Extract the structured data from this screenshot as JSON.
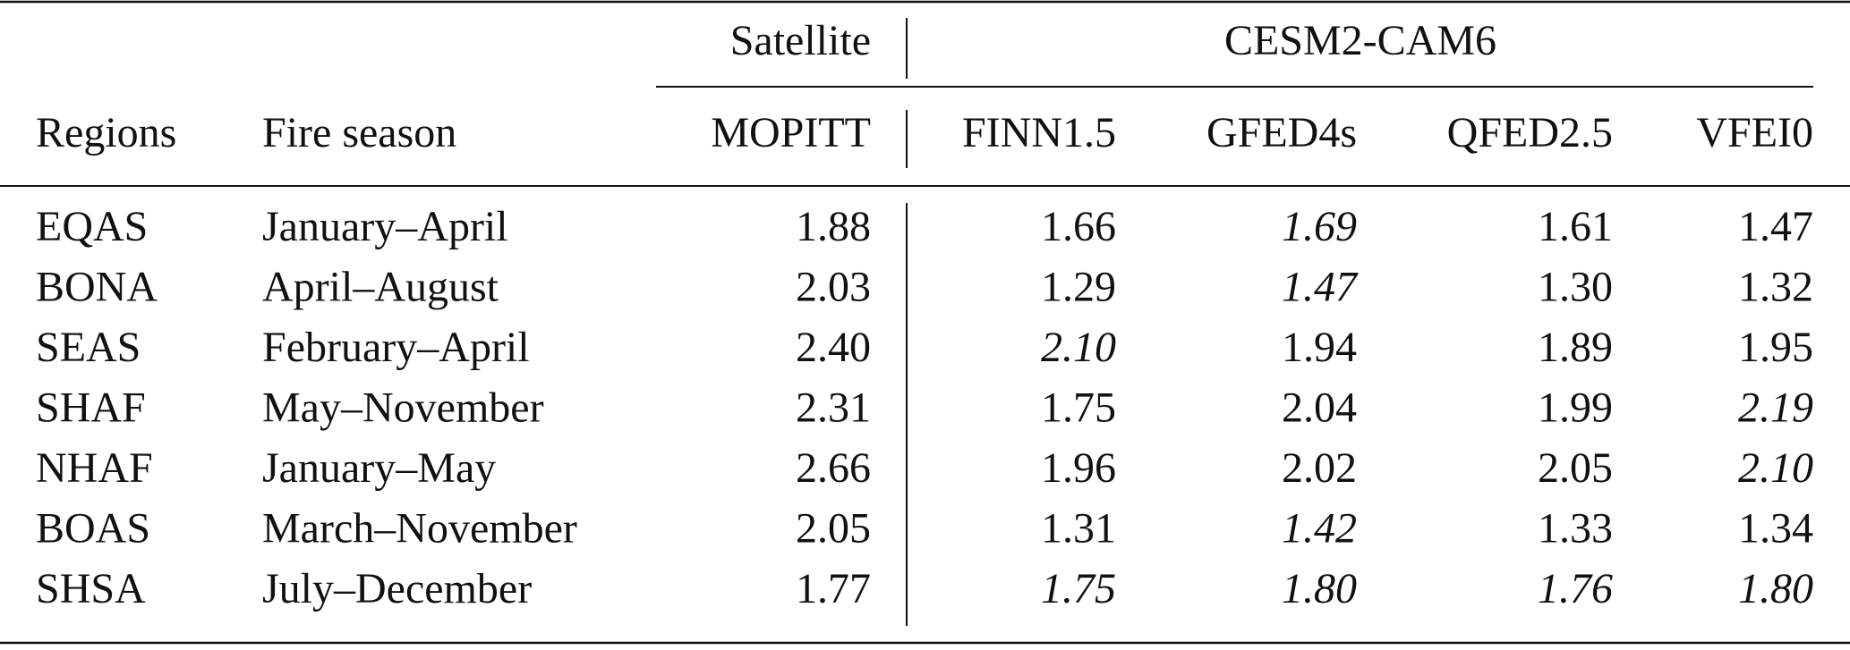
{
  "table": {
    "group_headers": [
      "Satellite",
      "CESM2-CAM6"
    ],
    "columns": [
      "Regions",
      "Fire season",
      "MOPITT",
      "FINN1.5",
      "GFED4s",
      "QFED2.5",
      "VFEI0"
    ],
    "rows": [
      [
        "EQAS",
        "January–April",
        "1.88",
        "1.66",
        "1.69",
        "1.61",
        "1.47"
      ],
      [
        "BONA",
        "April–August",
        "2.03",
        "1.29",
        "1.47",
        "1.30",
        "1.32"
      ],
      [
        "SEAS",
        "February–April",
        "2.40",
        "2.10",
        "1.94",
        "1.89",
        "1.95"
      ],
      [
        "SHAF",
        "May–November",
        "2.31",
        "1.75",
        "2.04",
        "1.99",
        "2.19"
      ],
      [
        "NHAF",
        "January–May",
        "2.66",
        "1.96",
        "2.02",
        "2.05",
        "2.10"
      ],
      [
        "BOAS",
        "March–November",
        "2.05",
        "1.31",
        "1.42",
        "1.33",
        "1.34"
      ],
      [
        "SHSA",
        "July–December",
        "1.77",
        "1.75",
        "1.80",
        "1.76",
        "1.80"
      ]
    ],
    "italic_cells": [
      [
        4
      ],
      [
        4
      ],
      [
        3
      ],
      [
        6
      ],
      [
        6
      ],
      [
        4
      ],
      [
        3,
        4,
        5,
        6
      ]
    ]
  }
}
